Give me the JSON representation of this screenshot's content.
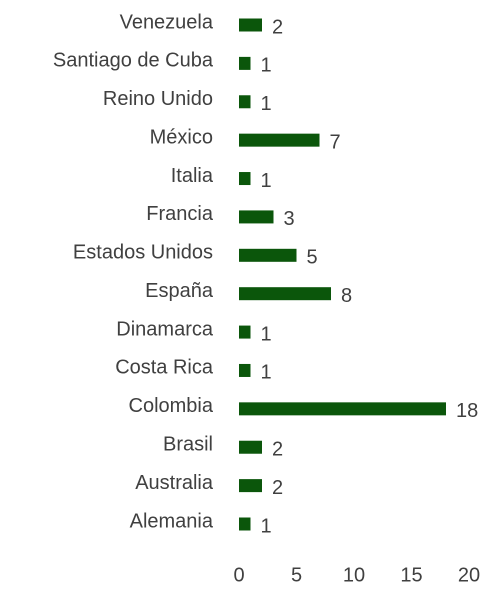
{
  "chart_data": {
    "type": "bar",
    "orientation": "horizontal",
    "categories": [
      "Venezuela",
      "Santiago de Cuba",
      "Reino Unido",
      "México",
      "Italia",
      "Francia",
      "Estados Unidos",
      "España",
      "Dinamarca",
      "Costa Rica",
      "Colombia",
      "Brasil",
      "Australia",
      "Alemania"
    ],
    "values": [
      2,
      1,
      1,
      7,
      1,
      3,
      5,
      8,
      1,
      1,
      18,
      2,
      2,
      1
    ],
    "color": "#0b560b",
    "xlim": [
      0,
      20
    ],
    "xticks": [
      0,
      5,
      10,
      15,
      20
    ],
    "grid": false
  }
}
